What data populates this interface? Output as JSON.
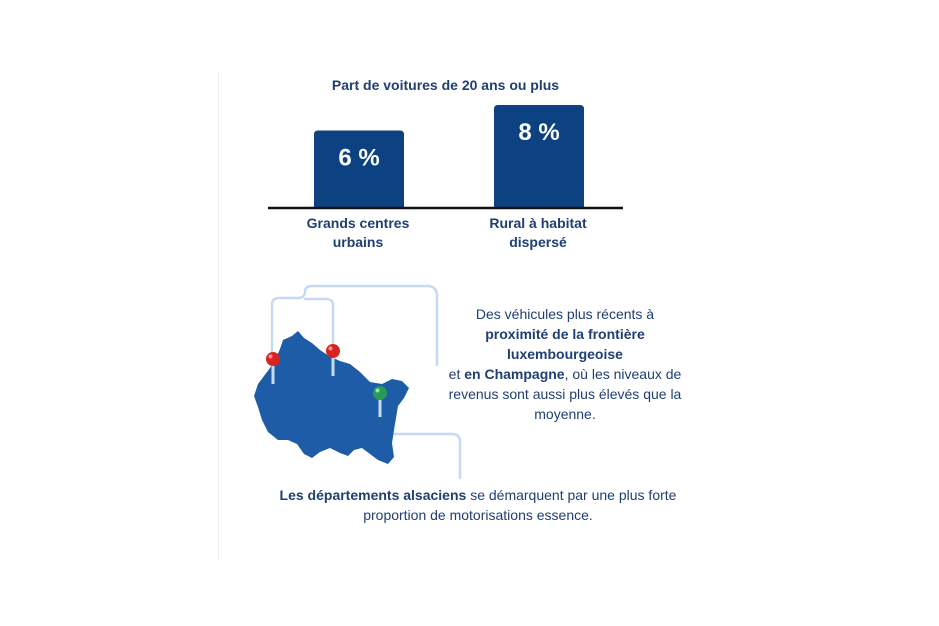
{
  "colors": {
    "bar": "#0d4282",
    "axis": "#111111",
    "text": "#1f3f73",
    "map_fill": "#1e5ca7",
    "connector": "#c6dbf2",
    "pin_red": "#d8231f",
    "pin_green": "#2a9a57"
  },
  "chart_data": {
    "type": "bar",
    "title": "Part de voitures de 20 ans ou plus",
    "categories": [
      "Grands centres urbains",
      "Rural à habitat dispersé"
    ],
    "category_lines": [
      [
        "Grands centres",
        "urbains"
      ],
      [
        "Rural à habitat",
        "dispersé"
      ]
    ],
    "values": [
      6,
      8
    ],
    "value_labels": [
      "6 %",
      "8 %"
    ],
    "unit": "%",
    "ylim": [
      0,
      8
    ],
    "grid": false,
    "legend": "none"
  },
  "annotations": {
    "frontier": {
      "t1": "Des véhicules plus récents à",
      "b1": "proximité de la frontière luxembourgeoise",
      "t2": "et",
      "b2": "en Champagne",
      "t3": ", où les niveaux de revenus sont aussi plus élevés que la moyenne."
    },
    "alsace": {
      "b1": "Les départements alsaciens",
      "t1": "se démarquent par une plus forte proportion de motorisations essence."
    }
  },
  "map": {
    "pins": [
      {
        "color_name": "red",
        "meaning": "frontière luxembourgeoise"
      },
      {
        "color_name": "red",
        "meaning": "Champagne"
      },
      {
        "color_name": "green",
        "meaning": "départements alsaciens"
      }
    ],
    "icons": [
      "location-pin-icon",
      "location-pin-icon",
      "location-pin-icon"
    ]
  }
}
